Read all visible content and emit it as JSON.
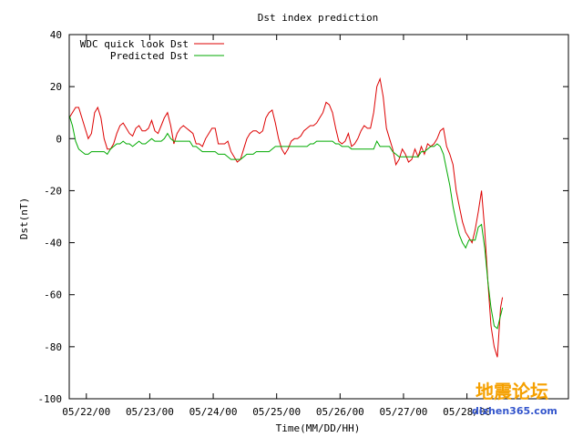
{
  "chart_data": {
    "type": "line",
    "title": "Dst index prediction",
    "xlabel": "Time(MM/DD/HH)",
    "ylabel": "Dst(nT)",
    "ylim": [
      -100,
      40
    ],
    "yticks": [
      40,
      20,
      0,
      -20,
      -40,
      -60,
      -80,
      -100
    ],
    "xlim_days": [
      -0.27,
      7.6
    ],
    "xticks": [
      {
        "at": 0,
        "label": "05/22/00"
      },
      {
        "at": 1,
        "label": "05/23/00"
      },
      {
        "at": 2,
        "label": "05/24/00"
      },
      {
        "at": 3,
        "label": "05/25/00"
      },
      {
        "at": 4,
        "label": "05/26/00"
      },
      {
        "at": 5,
        "label": "05/27/00"
      },
      {
        "at": 6,
        "label": "05/28/00"
      }
    ],
    "grid": false,
    "legend": "top-left",
    "series": [
      {
        "name": "WDC quick look Dst",
        "color": "#dd0000",
        "points": [
          [
            -0.27,
            8
          ],
          [
            -0.22,
            10
          ],
          [
            -0.17,
            12
          ],
          [
            -0.12,
            12
          ],
          [
            -0.07,
            8
          ],
          [
            -0.02,
            4
          ],
          [
            0.03,
            0
          ],
          [
            0.08,
            2
          ],
          [
            0.13,
            10
          ],
          [
            0.18,
            12
          ],
          [
            0.23,
            8
          ],
          [
            0.28,
            0
          ],
          [
            0.33,
            -4
          ],
          [
            0.38,
            -4
          ],
          [
            0.43,
            -2
          ],
          [
            0.48,
            2
          ],
          [
            0.53,
            5
          ],
          [
            0.58,
            6
          ],
          [
            0.63,
            4
          ],
          [
            0.68,
            2
          ],
          [
            0.73,
            1
          ],
          [
            0.78,
            4
          ],
          [
            0.83,
            5
          ],
          [
            0.88,
            3
          ],
          [
            0.93,
            3
          ],
          [
            0.98,
            4
          ],
          [
            1.03,
            7
          ],
          [
            1.08,
            3
          ],
          [
            1.13,
            2
          ],
          [
            1.18,
            5
          ],
          [
            1.23,
            8
          ],
          [
            1.28,
            10
          ],
          [
            1.33,
            5
          ],
          [
            1.38,
            -2
          ],
          [
            1.43,
            2
          ],
          [
            1.48,
            4
          ],
          [
            1.53,
            5
          ],
          [
            1.58,
            4
          ],
          [
            1.63,
            3
          ],
          [
            1.68,
            2
          ],
          [
            1.73,
            -2
          ],
          [
            1.78,
            -2
          ],
          [
            1.83,
            -3
          ],
          [
            1.88,
            0
          ],
          [
            1.93,
            2
          ],
          [
            1.98,
            4
          ],
          [
            2.03,
            4
          ],
          [
            2.08,
            -2
          ],
          [
            2.13,
            -2
          ],
          [
            2.18,
            -2
          ],
          [
            2.23,
            -1
          ],
          [
            2.28,
            -5
          ],
          [
            2.33,
            -7
          ],
          [
            2.38,
            -9
          ],
          [
            2.43,
            -8
          ],
          [
            2.48,
            -4
          ],
          [
            2.53,
            0
          ],
          [
            2.58,
            2
          ],
          [
            2.63,
            3
          ],
          [
            2.68,
            3
          ],
          [
            2.73,
            2
          ],
          [
            2.78,
            3
          ],
          [
            2.83,
            8
          ],
          [
            2.88,
            10
          ],
          [
            2.93,
            11
          ],
          [
            2.98,
            6
          ],
          [
            3.03,
            0
          ],
          [
            3.08,
            -4
          ],
          [
            3.13,
            -6
          ],
          [
            3.18,
            -4
          ],
          [
            3.23,
            -1
          ],
          [
            3.28,
            0
          ],
          [
            3.33,
            0
          ],
          [
            3.38,
            1
          ],
          [
            3.43,
            3
          ],
          [
            3.48,
            4
          ],
          [
            3.53,
            5
          ],
          [
            3.58,
            5
          ],
          [
            3.63,
            6
          ],
          [
            3.68,
            8
          ],
          [
            3.73,
            10
          ],
          [
            3.78,
            14
          ],
          [
            3.83,
            13
          ],
          [
            3.88,
            10
          ],
          [
            3.93,
            4
          ],
          [
            3.98,
            -1
          ],
          [
            4.03,
            -2
          ],
          [
            4.08,
            -1
          ],
          [
            4.13,
            2
          ],
          [
            4.18,
            -3
          ],
          [
            4.23,
            -2
          ],
          [
            4.28,
            0
          ],
          [
            4.33,
            3
          ],
          [
            4.38,
            5
          ],
          [
            4.43,
            4
          ],
          [
            4.48,
            4
          ],
          [
            4.53,
            10
          ],
          [
            4.58,
            20
          ],
          [
            4.63,
            23
          ],
          [
            4.68,
            16
          ],
          [
            4.73,
            4
          ],
          [
            4.78,
            0
          ],
          [
            4.83,
            -4
          ],
          [
            4.88,
            -10
          ],
          [
            4.93,
            -8
          ],
          [
            4.98,
            -4
          ],
          [
            5.03,
            -6
          ],
          [
            5.08,
            -9
          ],
          [
            5.13,
            -8
          ],
          [
            5.18,
            -4
          ],
          [
            5.23,
            -7
          ],
          [
            5.28,
            -3
          ],
          [
            5.33,
            -6
          ],
          [
            5.38,
            -2
          ],
          [
            5.43,
            -3
          ],
          [
            5.48,
            -2
          ],
          [
            5.53,
            0
          ],
          [
            5.58,
            3
          ],
          [
            5.63,
            4
          ],
          [
            5.68,
            -3
          ],
          [
            5.73,
            -6
          ],
          [
            5.78,
            -10
          ],
          [
            5.83,
            -20
          ],
          [
            5.88,
            -26
          ],
          [
            5.93,
            -32
          ],
          [
            5.98,
            -36
          ],
          [
            6.03,
            -38
          ],
          [
            6.08,
            -40
          ],
          [
            6.13,
            -35
          ],
          [
            6.18,
            -28
          ],
          [
            6.23,
            -20
          ],
          [
            6.28,
            -35
          ],
          [
            6.33,
            -55
          ],
          [
            6.38,
            -72
          ],
          [
            6.43,
            -80
          ],
          [
            6.48,
            -84
          ],
          [
            6.53,
            -65
          ],
          [
            6.56,
            -61
          ]
        ]
      },
      {
        "name": "Predicted Dst",
        "color": "#00aa00",
        "points": [
          [
            -0.27,
            9
          ],
          [
            -0.22,
            5
          ],
          [
            -0.17,
            -1
          ],
          [
            -0.12,
            -4
          ],
          [
            -0.07,
            -5
          ],
          [
            -0.02,
            -6
          ],
          [
            0.03,
            -6
          ],
          [
            0.08,
            -5
          ],
          [
            0.13,
            -5
          ],
          [
            0.18,
            -5
          ],
          [
            0.23,
            -5
          ],
          [
            0.28,
            -5
          ],
          [
            0.33,
            -6
          ],
          [
            0.38,
            -4
          ],
          [
            0.43,
            -3
          ],
          [
            0.48,
            -2
          ],
          [
            0.53,
            -2
          ],
          [
            0.58,
            -1
          ],
          [
            0.63,
            -2
          ],
          [
            0.68,
            -2
          ],
          [
            0.73,
            -3
          ],
          [
            0.78,
            -2
          ],
          [
            0.83,
            -1
          ],
          [
            0.88,
            -2
          ],
          [
            0.93,
            -2
          ],
          [
            0.98,
            -1
          ],
          [
            1.03,
            0
          ],
          [
            1.08,
            -1
          ],
          [
            1.13,
            -1
          ],
          [
            1.18,
            -1
          ],
          [
            1.23,
            0
          ],
          [
            1.28,
            2
          ],
          [
            1.33,
            0
          ],
          [
            1.38,
            -1
          ],
          [
            1.43,
            -1
          ],
          [
            1.48,
            -1
          ],
          [
            1.53,
            -1
          ],
          [
            1.58,
            -1
          ],
          [
            1.63,
            -1
          ],
          [
            1.68,
            -3
          ],
          [
            1.73,
            -3
          ],
          [
            1.78,
            -4
          ],
          [
            1.83,
            -5
          ],
          [
            1.88,
            -5
          ],
          [
            1.93,
            -5
          ],
          [
            1.98,
            -5
          ],
          [
            2.03,
            -5
          ],
          [
            2.08,
            -6
          ],
          [
            2.13,
            -6
          ],
          [
            2.18,
            -6
          ],
          [
            2.23,
            -7
          ],
          [
            2.28,
            -8
          ],
          [
            2.33,
            -8
          ],
          [
            2.38,
            -8
          ],
          [
            2.43,
            -8
          ],
          [
            2.48,
            -7
          ],
          [
            2.53,
            -6
          ],
          [
            2.58,
            -6
          ],
          [
            2.63,
            -6
          ],
          [
            2.68,
            -5
          ],
          [
            2.73,
            -5
          ],
          [
            2.78,
            -5
          ],
          [
            2.83,
            -5
          ],
          [
            2.88,
            -5
          ],
          [
            2.93,
            -4
          ],
          [
            2.98,
            -3
          ],
          [
            3.03,
            -3
          ],
          [
            3.08,
            -3
          ],
          [
            3.13,
            -3
          ],
          [
            3.18,
            -3
          ],
          [
            3.23,
            -3
          ],
          [
            3.28,
            -3
          ],
          [
            3.33,
            -3
          ],
          [
            3.38,
            -3
          ],
          [
            3.43,
            -3
          ],
          [
            3.48,
            -3
          ],
          [
            3.53,
            -2
          ],
          [
            3.58,
            -2
          ],
          [
            3.63,
            -1
          ],
          [
            3.68,
            -1
          ],
          [
            3.73,
            -1
          ],
          [
            3.78,
            -1
          ],
          [
            3.83,
            -1
          ],
          [
            3.88,
            -1
          ],
          [
            3.93,
            -2
          ],
          [
            3.98,
            -2
          ],
          [
            4.03,
            -3
          ],
          [
            4.08,
            -3
          ],
          [
            4.13,
            -3
          ],
          [
            4.18,
            -4
          ],
          [
            4.23,
            -4
          ],
          [
            4.28,
            -4
          ],
          [
            4.33,
            -4
          ],
          [
            4.38,
            -4
          ],
          [
            4.43,
            -4
          ],
          [
            4.48,
            -4
          ],
          [
            4.53,
            -4
          ],
          [
            4.58,
            -1
          ],
          [
            4.63,
            -3
          ],
          [
            4.68,
            -3
          ],
          [
            4.73,
            -3
          ],
          [
            4.78,
            -3
          ],
          [
            4.83,
            -5
          ],
          [
            4.88,
            -6
          ],
          [
            4.93,
            -7
          ],
          [
            4.98,
            -7
          ],
          [
            5.03,
            -7
          ],
          [
            5.08,
            -7
          ],
          [
            5.13,
            -7
          ],
          [
            5.18,
            -7
          ],
          [
            5.23,
            -7
          ],
          [
            5.28,
            -5
          ],
          [
            5.33,
            -5
          ],
          [
            5.38,
            -4
          ],
          [
            5.43,
            -3
          ],
          [
            5.48,
            -3
          ],
          [
            5.53,
            -2
          ],
          [
            5.58,
            -3
          ],
          [
            5.63,
            -6
          ],
          [
            5.68,
            -12
          ],
          [
            5.73,
            -18
          ],
          [
            5.78,
            -26
          ],
          [
            5.83,
            -32
          ],
          [
            5.88,
            -37
          ],
          [
            5.93,
            -40
          ],
          [
            5.98,
            -42
          ],
          [
            6.03,
            -39
          ],
          [
            6.08,
            -39
          ],
          [
            6.13,
            -39
          ],
          [
            6.18,
            -34
          ],
          [
            6.23,
            -33
          ],
          [
            6.28,
            -42
          ],
          [
            6.33,
            -55
          ],
          [
            6.38,
            -65
          ],
          [
            6.43,
            -72
          ],
          [
            6.48,
            -73
          ],
          [
            6.53,
            -68
          ],
          [
            6.56,
            -65
          ]
        ]
      }
    ],
    "watermark": {
      "text_top": "地震论坛",
      "text_bottom": "dizhen365.com",
      "color": "#f5a000",
      "color2": "#3355cc"
    }
  }
}
